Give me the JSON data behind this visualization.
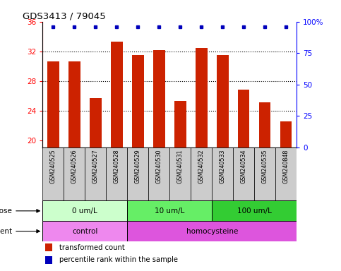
{
  "title": "GDS3413 / 79045",
  "samples": [
    "GSM240525",
    "GSM240526",
    "GSM240527",
    "GSM240528",
    "GSM240529",
    "GSM240530",
    "GSM240531",
    "GSM240532",
    "GSM240533",
    "GSM240534",
    "GSM240535",
    "GSM240848"
  ],
  "bar_values": [
    30.6,
    30.6,
    25.7,
    33.3,
    31.5,
    32.2,
    25.3,
    32.4,
    31.5,
    26.8,
    25.1,
    22.5
  ],
  "percentile_values": [
    96,
    96,
    96,
    96,
    96,
    96,
    96,
    96,
    96,
    96,
    96,
    96
  ],
  "bar_color": "#cc2200",
  "dot_color": "#0000bb",
  "ylim_left": [
    19,
    36
  ],
  "ylim_right": [
    0,
    100
  ],
  "yticks_left": [
    20,
    24,
    28,
    32,
    36
  ],
  "yticks_right": [
    0,
    25,
    50,
    75,
    100
  ],
  "yticklabels_right": [
    "0",
    "25",
    "50",
    "75",
    "100%"
  ],
  "dose_groups": [
    {
      "label": "0 um/L",
      "start": 0,
      "end": 4,
      "color": "#ccffcc"
    },
    {
      "label": "10 um/L",
      "start": 4,
      "end": 8,
      "color": "#66ee66"
    },
    {
      "label": "100 um/L",
      "start": 8,
      "end": 12,
      "color": "#33cc33"
    }
  ],
  "agent_groups": [
    {
      "label": "control",
      "start": 0,
      "end": 4,
      "color": "#ee88ee"
    },
    {
      "label": "homocysteine",
      "start": 4,
      "end": 12,
      "color": "#dd55dd"
    }
  ],
  "sample_box_color": "#cccccc",
  "legend_bar_label": "transformed count",
  "legend_dot_label": "percentile rank within the sample",
  "dose_label": "dose",
  "agent_label": "agent",
  "bar_width": 0.55
}
